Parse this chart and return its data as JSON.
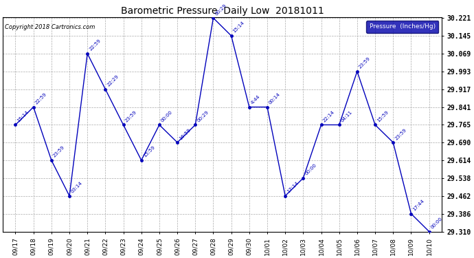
{
  "title": "Barometric Pressure  Daily Low  20181011",
  "ylabel": "Pressure  (Inches/Hg)",
  "copyright": "Copyright 2018 Cartronics.com",
  "line_color": "#0000BB",
  "background_color": "#FFFFFF",
  "plot_background": "#FFFFFF",
  "ylim_min": 29.31,
  "ylim_max": 30.221,
  "yticks": [
    29.31,
    29.386,
    29.462,
    29.538,
    29.614,
    29.69,
    29.765,
    29.841,
    29.917,
    29.993,
    30.069,
    30.145,
    30.221
  ],
  "dates": [
    "09/17",
    "09/18",
    "09/19",
    "09/20",
    "09/21",
    "09/22",
    "09/23",
    "09/24",
    "09/25",
    "09/26",
    "09/27",
    "09/28",
    "09/29",
    "09/30",
    "10/01",
    "10/02",
    "10/03",
    "10/04",
    "10/05",
    "10/06",
    "10/07",
    "10/08",
    "10/09",
    "10/10"
  ],
  "values": [
    29.765,
    29.841,
    29.614,
    29.462,
    30.069,
    29.917,
    29.765,
    29.614,
    29.765,
    29.69,
    29.765,
    30.221,
    30.145,
    29.841,
    29.841,
    29.462,
    29.538,
    29.765,
    29.765,
    29.993,
    29.765,
    29.69,
    29.386,
    29.31
  ],
  "labels": [
    "15:14",
    "22:59",
    "23:59",
    "03:14",
    "22:59",
    "22:29",
    "23:59",
    "15:59",
    "00:00",
    "16:59",
    "00:29",
    "00:29",
    "15:14",
    "4:44",
    "00:14",
    "17:14",
    "00:00",
    "22:14",
    "04:11",
    "23:59",
    "15:59",
    "23:59",
    "17:44",
    "00:00"
  ],
  "legend_bg": "#0000AA",
  "legend_text_color": "#FFFFFF",
  "figwidth": 6.9,
  "figheight": 3.75,
  "dpi": 100
}
